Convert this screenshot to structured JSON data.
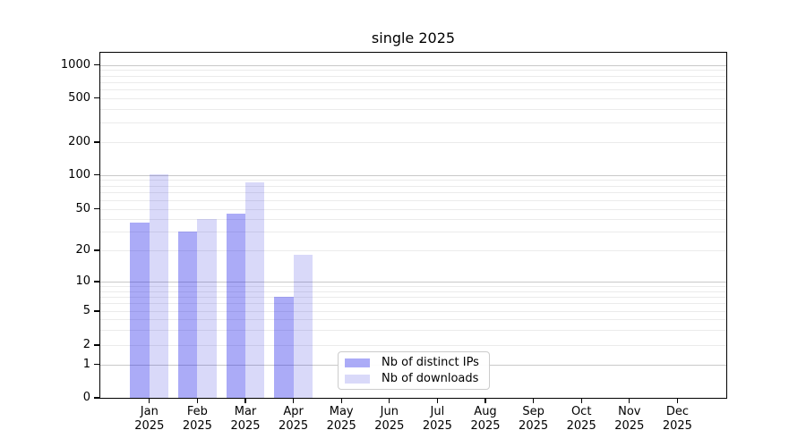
{
  "figure": {
    "background": "#ffffff"
  },
  "chart_data": {
    "type": "bar",
    "title": "single 2025",
    "categories": [
      "Jan 2025",
      "Feb 2025",
      "Mar 2025",
      "Apr 2025",
      "May 2025",
      "Jun 2025",
      "Jul 2025",
      "Aug 2025",
      "Sep 2025",
      "Oct 2025",
      "Nov 2025",
      "Dec 2025"
    ],
    "series": [
      {
        "name": "Nb of distinct IPs",
        "color": "#a6a6f4",
        "fill": "rgba(13,13,232,0.35)",
        "values": [
          37,
          30,
          45,
          7,
          0,
          0,
          0,
          0,
          0,
          0,
          0,
          0
        ]
      },
      {
        "name": "Nb of downloads",
        "color": "#d9d9f8",
        "fill": "rgba(0,0,215,0.15)",
        "values": [
          101,
          40,
          85,
          18,
          0,
          0,
          0,
          0,
          0,
          0,
          0,
          0
        ]
      }
    ],
    "xlabel": "",
    "ylabel": "",
    "yscale": "symlog",
    "yticks": [
      0,
      1,
      2,
      5,
      10,
      20,
      50,
      100,
      200,
      500,
      1000
    ],
    "ylim": [
      0,
      1400
    ],
    "grid": {
      "major_color": "#c9c9c9",
      "minor_color": "#ebebeb",
      "orientation": "horizontal",
      "major_at": "powers of 10",
      "minor_at": "2-9 per decade"
    },
    "legend_position": "inside axes, bottom center-left"
  }
}
